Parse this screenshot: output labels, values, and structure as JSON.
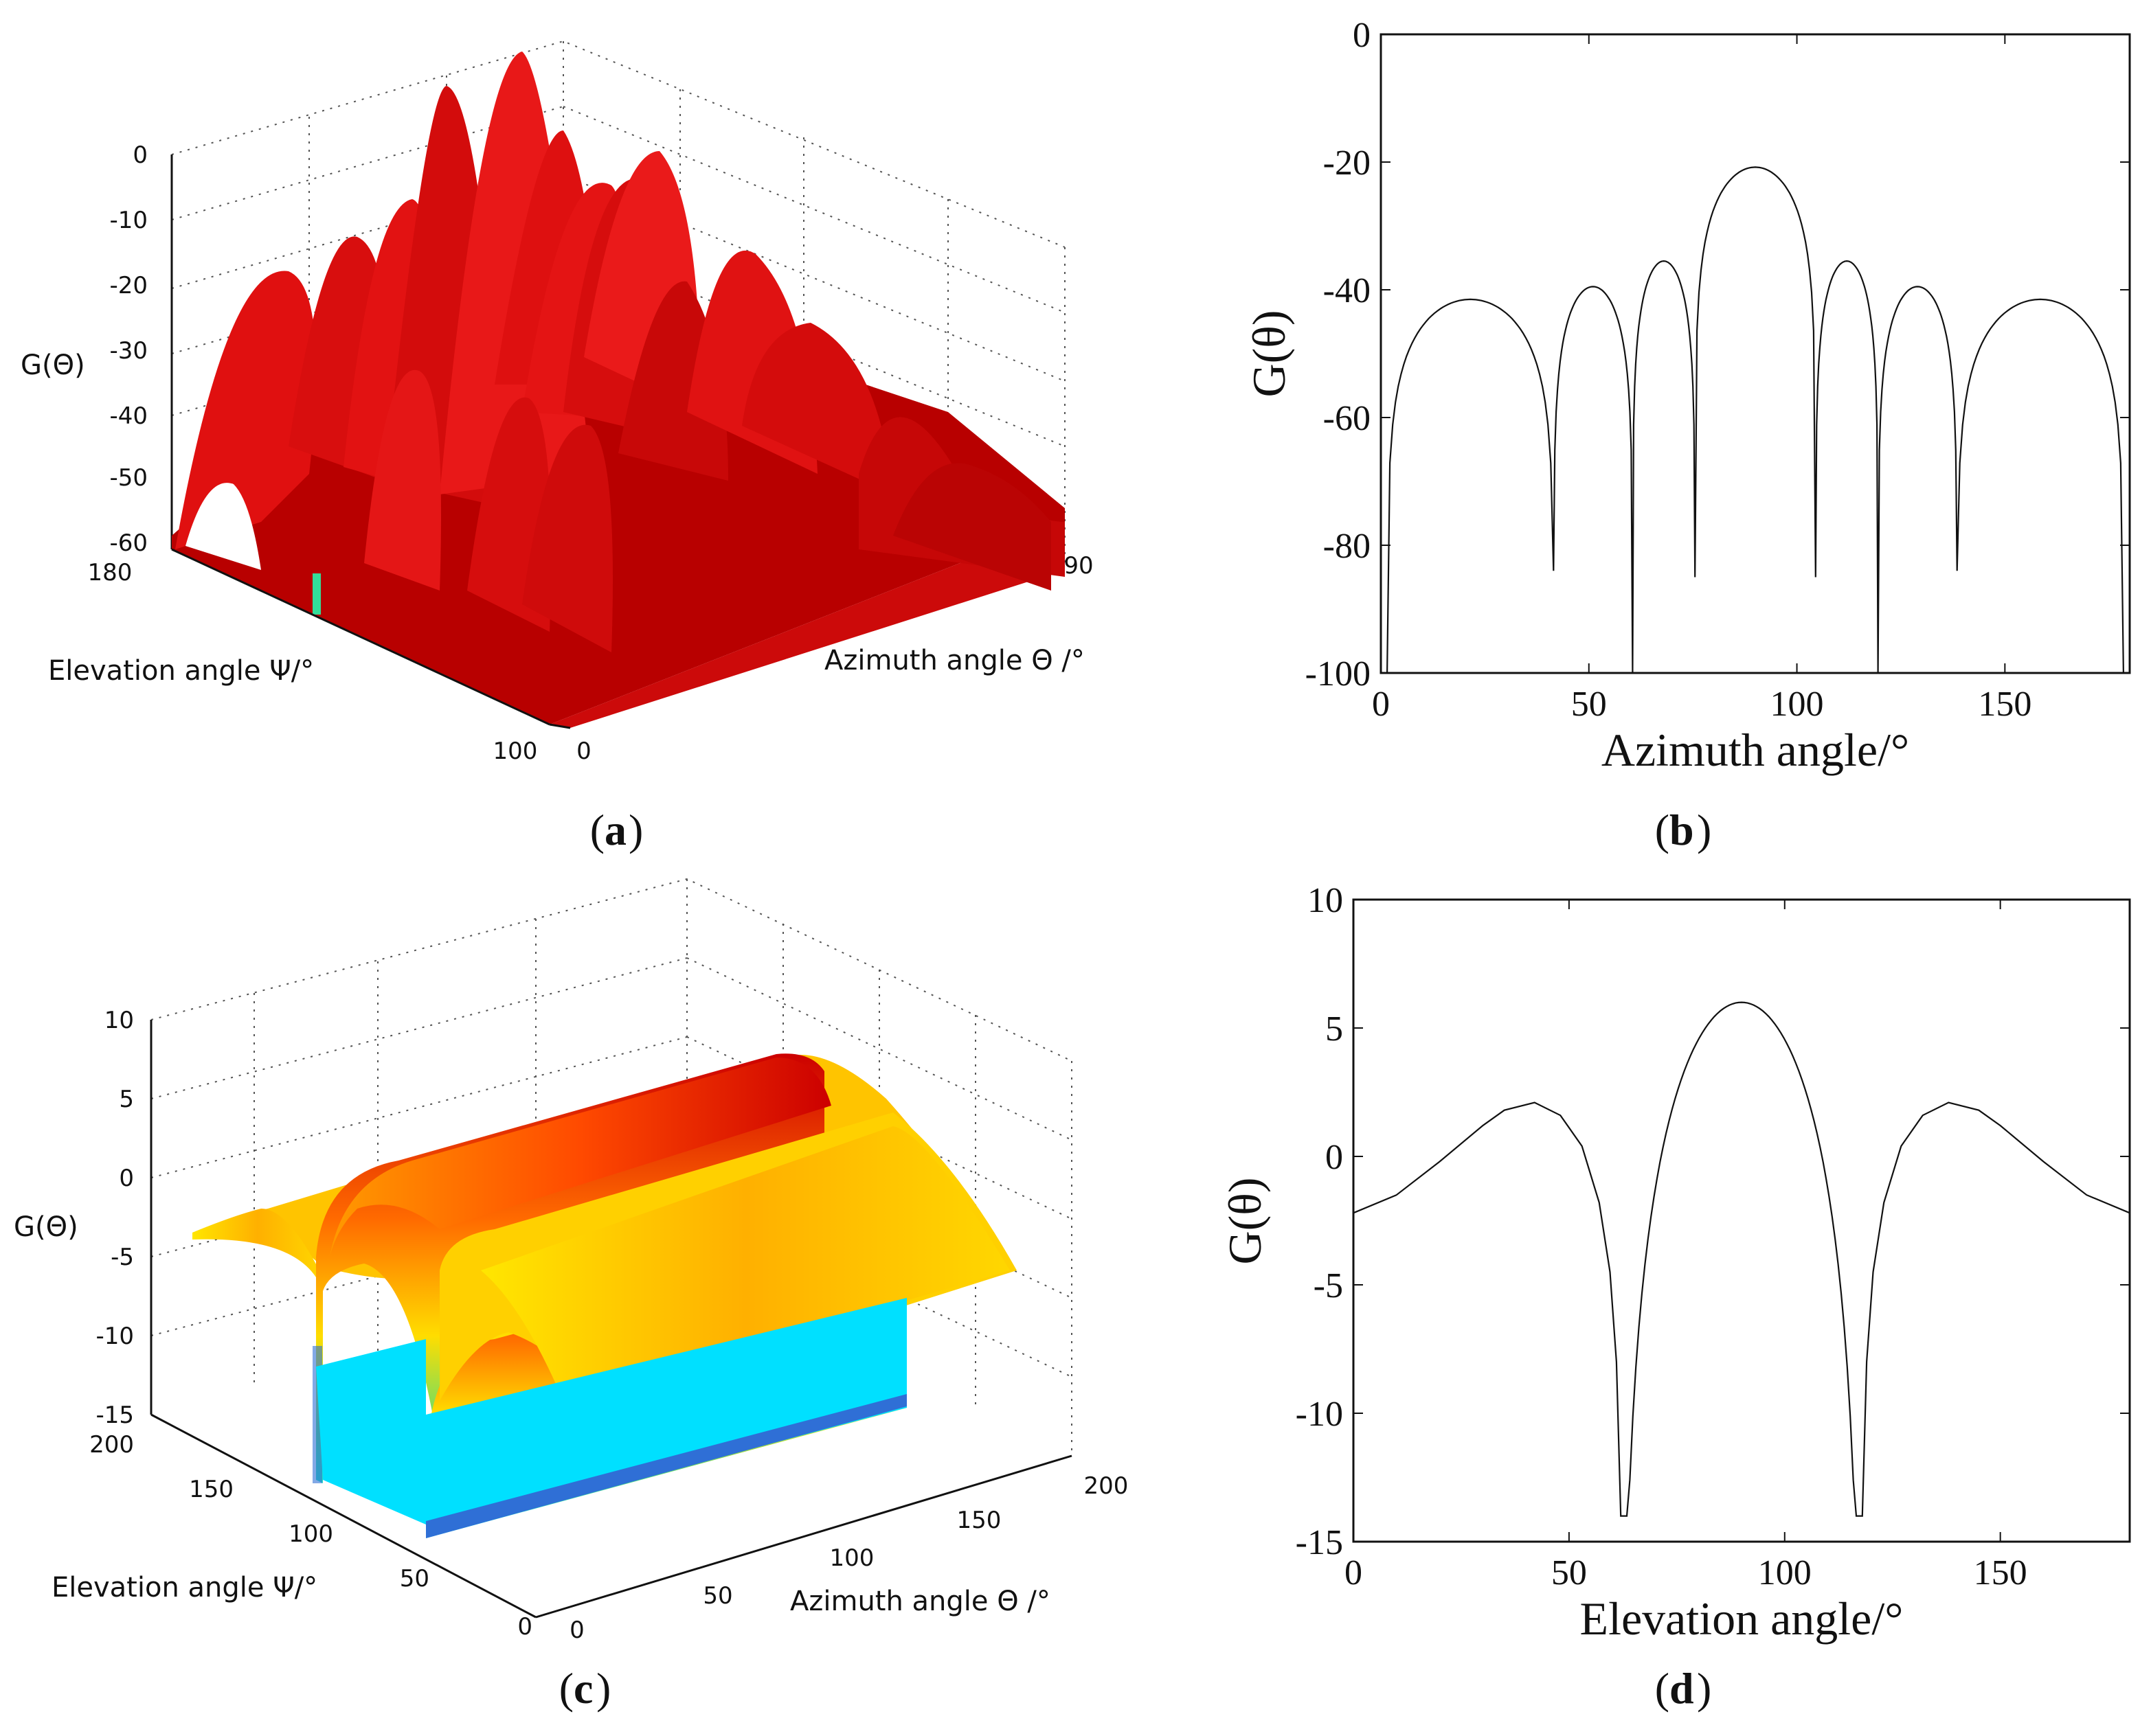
{
  "panels": {
    "a": {
      "caption": "a",
      "zlabel": "G(Θ)",
      "xlabel": "Elevation angle Ψ/°",
      "ylabel": "Azimuth angle Θ /°",
      "zticks": [
        "0",
        "-10",
        "-20",
        "-30",
        "-40",
        "-50",
        "-60"
      ],
      "psi_ticks": [
        "180",
        "100"
      ],
      "theta_ticks": [
        "90",
        "0"
      ]
    },
    "b": {
      "caption": "b"
    },
    "c": {
      "caption": "c",
      "zlabel": "G(Θ)",
      "xlabel": "Elevation angle Ψ/°",
      "ylabel": "Azimuth angle Θ /°",
      "zticks": [
        "10",
        "5",
        "0",
        "-5",
        "-10",
        "-15"
      ],
      "psi_ticks": [
        "200",
        "150",
        "100",
        "50",
        "0"
      ],
      "theta_ticks": [
        "0",
        "50",
        "100",
        "150",
        "200"
      ]
    },
    "d": {
      "caption": "d"
    }
  },
  "chart_data": [
    {
      "id": "a",
      "type": "surface3d",
      "zlabel": "G(Θ)",
      "xlabel": "Elevation angle Ψ/°",
      "ylabel": "Azimuth angle Θ /°",
      "zlim": [
        -60,
        0
      ],
      "surface_color": "#dd1111"
    },
    {
      "id": "b",
      "type": "line",
      "title": "",
      "xlabel": "Azimuth angle/°",
      "ylabel": "G(θ)",
      "xlim": [
        0,
        180
      ],
      "ylim": [
        -100,
        0
      ],
      "xticks": [
        "0",
        "50",
        "100",
        "150"
      ],
      "yticks": [
        "0",
        "-20",
        "-40",
        "-60",
        "-80",
        "-100"
      ],
      "pattern": {
        "lobes": [
          {
            "a": 1.5,
            "b": 41.5,
            "peak": -41.5
          },
          {
            "a": 41.5,
            "b": 60.5,
            "peak": -39.5
          },
          {
            "a": 60.5,
            "b": 75.5,
            "peak": -35.5
          },
          {
            "a": 75.5,
            "b": 104.5,
            "peak": -20.8
          },
          {
            "a": 104.5,
            "b": 119.5,
            "peak": -35.5
          },
          {
            "a": 119.5,
            "b": 138.5,
            "peak": -39.5
          },
          {
            "a": 138.5,
            "b": 178.5,
            "peak": -41.5
          }
        ],
        "nulls": [
          {
            "x": 1.5,
            "depth": -100
          },
          {
            "x": 41.5,
            "depth": -84
          },
          {
            "x": 60.5,
            "depth": -100
          },
          {
            "x": 75.5,
            "depth": -85
          },
          {
            "x": 104.5,
            "depth": -85
          },
          {
            "x": 119.5,
            "depth": -100
          },
          {
            "x": 138.5,
            "depth": -84
          },
          {
            "x": 178.5,
            "depth": -100
          }
        ]
      }
    },
    {
      "id": "c",
      "type": "surface3d",
      "zlabel": "G(Θ)",
      "xlabel": "Elevation angle Ψ/°",
      "ylabel": "Azimuth angle Θ /°",
      "zlim": [
        -15,
        10
      ],
      "xlim": [
        0,
        200
      ],
      "ylim": [
        0,
        200
      ],
      "colormap": [
        "#00e5ff",
        "#33dd88",
        "#ffee00",
        "#ff8800",
        "#cc0000"
      ]
    },
    {
      "id": "d",
      "type": "line",
      "title": "",
      "xlabel": "Elevation angle/°",
      "ylabel": "G(θ)",
      "xlim": [
        0,
        180
      ],
      "ylim": [
        -15,
        10
      ],
      "xticks": [
        "0",
        "50",
        "100",
        "150"
      ],
      "yticks": [
        "10",
        "5",
        "0",
        "-5",
        "-10",
        "-15"
      ],
      "pattern": {
        "points": [
          [
            0,
            -2.2
          ],
          [
            10,
            -1.5
          ],
          [
            20,
            -0.2
          ],
          [
            30,
            1.2
          ],
          [
            35,
            1.8
          ],
          [
            42,
            2.1
          ],
          [
            48,
            1.6
          ],
          [
            53,
            0.4
          ],
          [
            57,
            -1.8
          ],
          [
            59.5,
            -4.5
          ],
          [
            61,
            -8
          ],
          [
            62,
            -14
          ]
        ],
        "lobe": {
          "a": 62,
          "b": 118,
          "peak": 6.0
        },
        "points_after": [
          [
            118,
            -14
          ],
          [
            119,
            -8
          ],
          [
            120.5,
            -4.5
          ],
          [
            123,
            -1.8
          ],
          [
            127,
            0.4
          ],
          [
            132,
            1.6
          ],
          [
            138,
            2.1
          ],
          [
            145,
            1.8
          ],
          [
            150,
            1.2
          ],
          [
            160,
            -0.2
          ],
          [
            170,
            -1.5
          ],
          [
            180,
            -2.2
          ]
        ]
      }
    }
  ]
}
